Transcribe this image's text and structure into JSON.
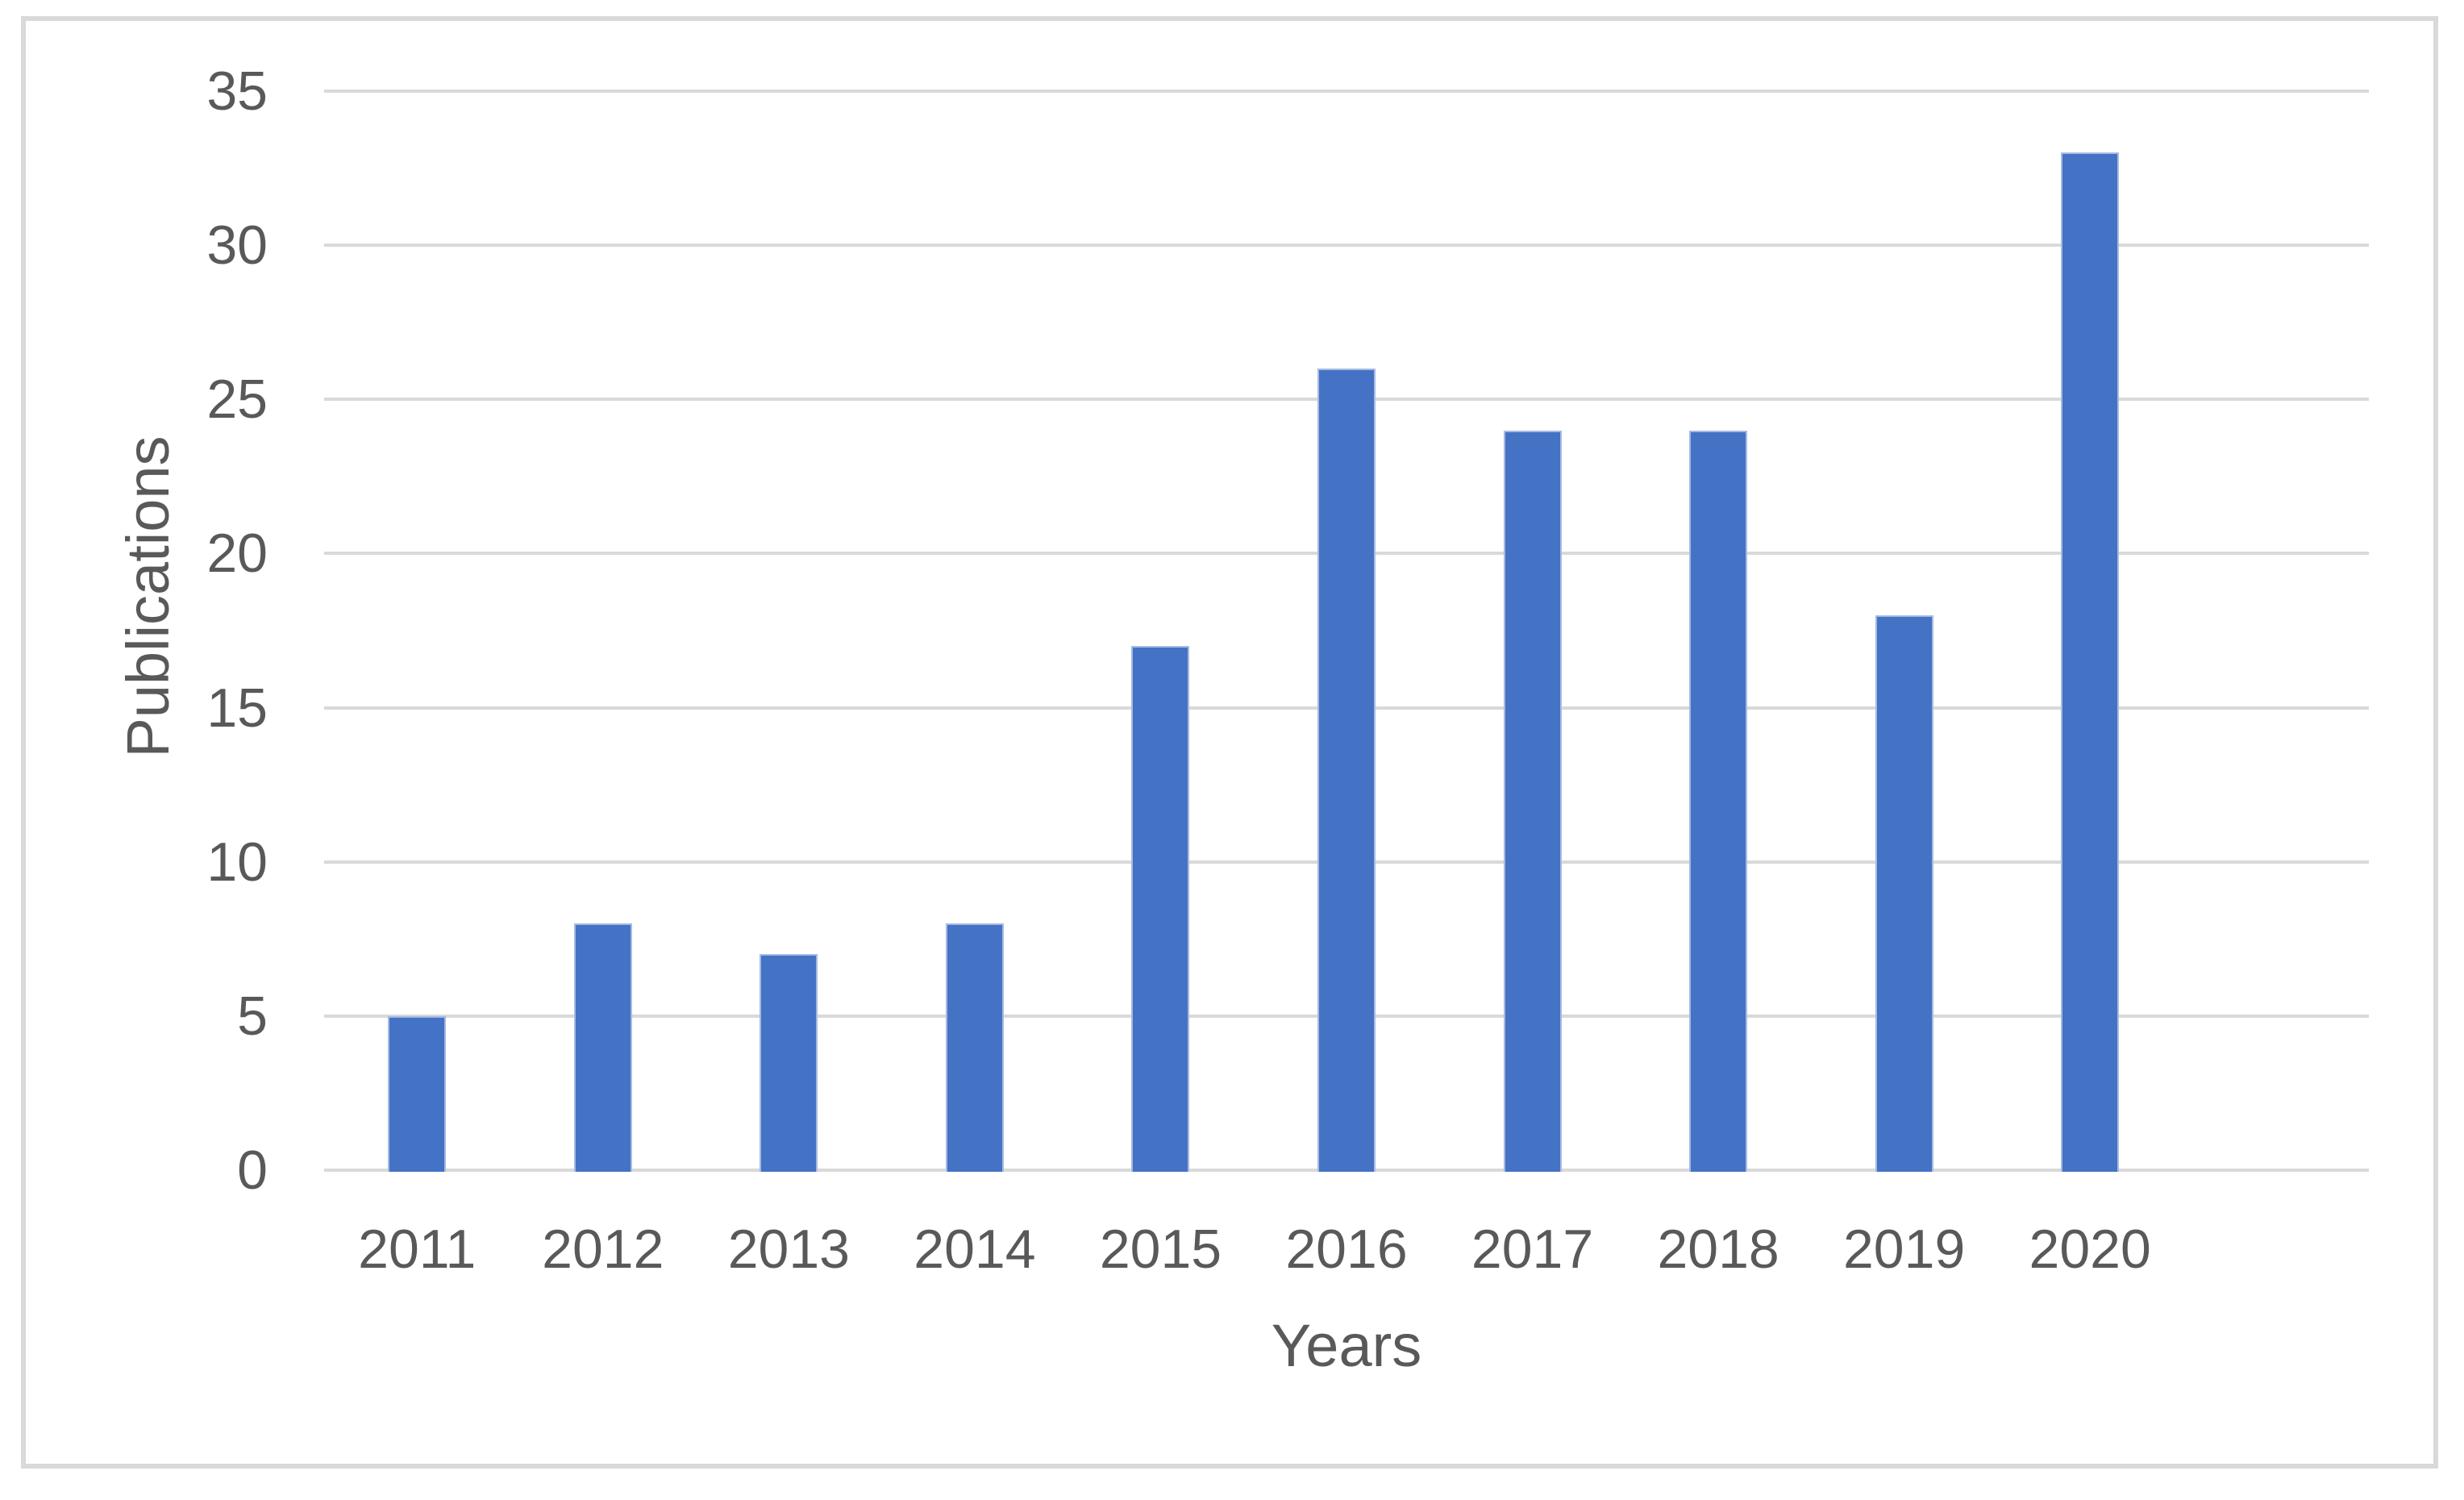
{
  "chart_data": {
    "type": "bar",
    "title": "",
    "categories": [
      "2011",
      "2012",
      "2013",
      "2014",
      "2015",
      "2016",
      "2017",
      "2018",
      "2019",
      "2020"
    ],
    "values": [
      5,
      8,
      7,
      8,
      17,
      26,
      24,
      24,
      18,
      33
    ],
    "xlabel": "Years",
    "ylabel": "Publications",
    "ylim": [
      0,
      35
    ],
    "yticks": [
      0,
      5,
      10,
      15,
      20,
      25,
      30,
      35
    ],
    "grid": "horizontal-only",
    "legend": "none",
    "extra_empty_category_slots": 1,
    "colors": {
      "bar_fill": "#4472C4",
      "bar_edge": "#A6BAE2",
      "gridline": "#D9D9D9",
      "axis_line": "#D9D9D9",
      "text": "#595959",
      "figure_border": "#D9D9D9",
      "background": "#FFFFFF"
    }
  }
}
